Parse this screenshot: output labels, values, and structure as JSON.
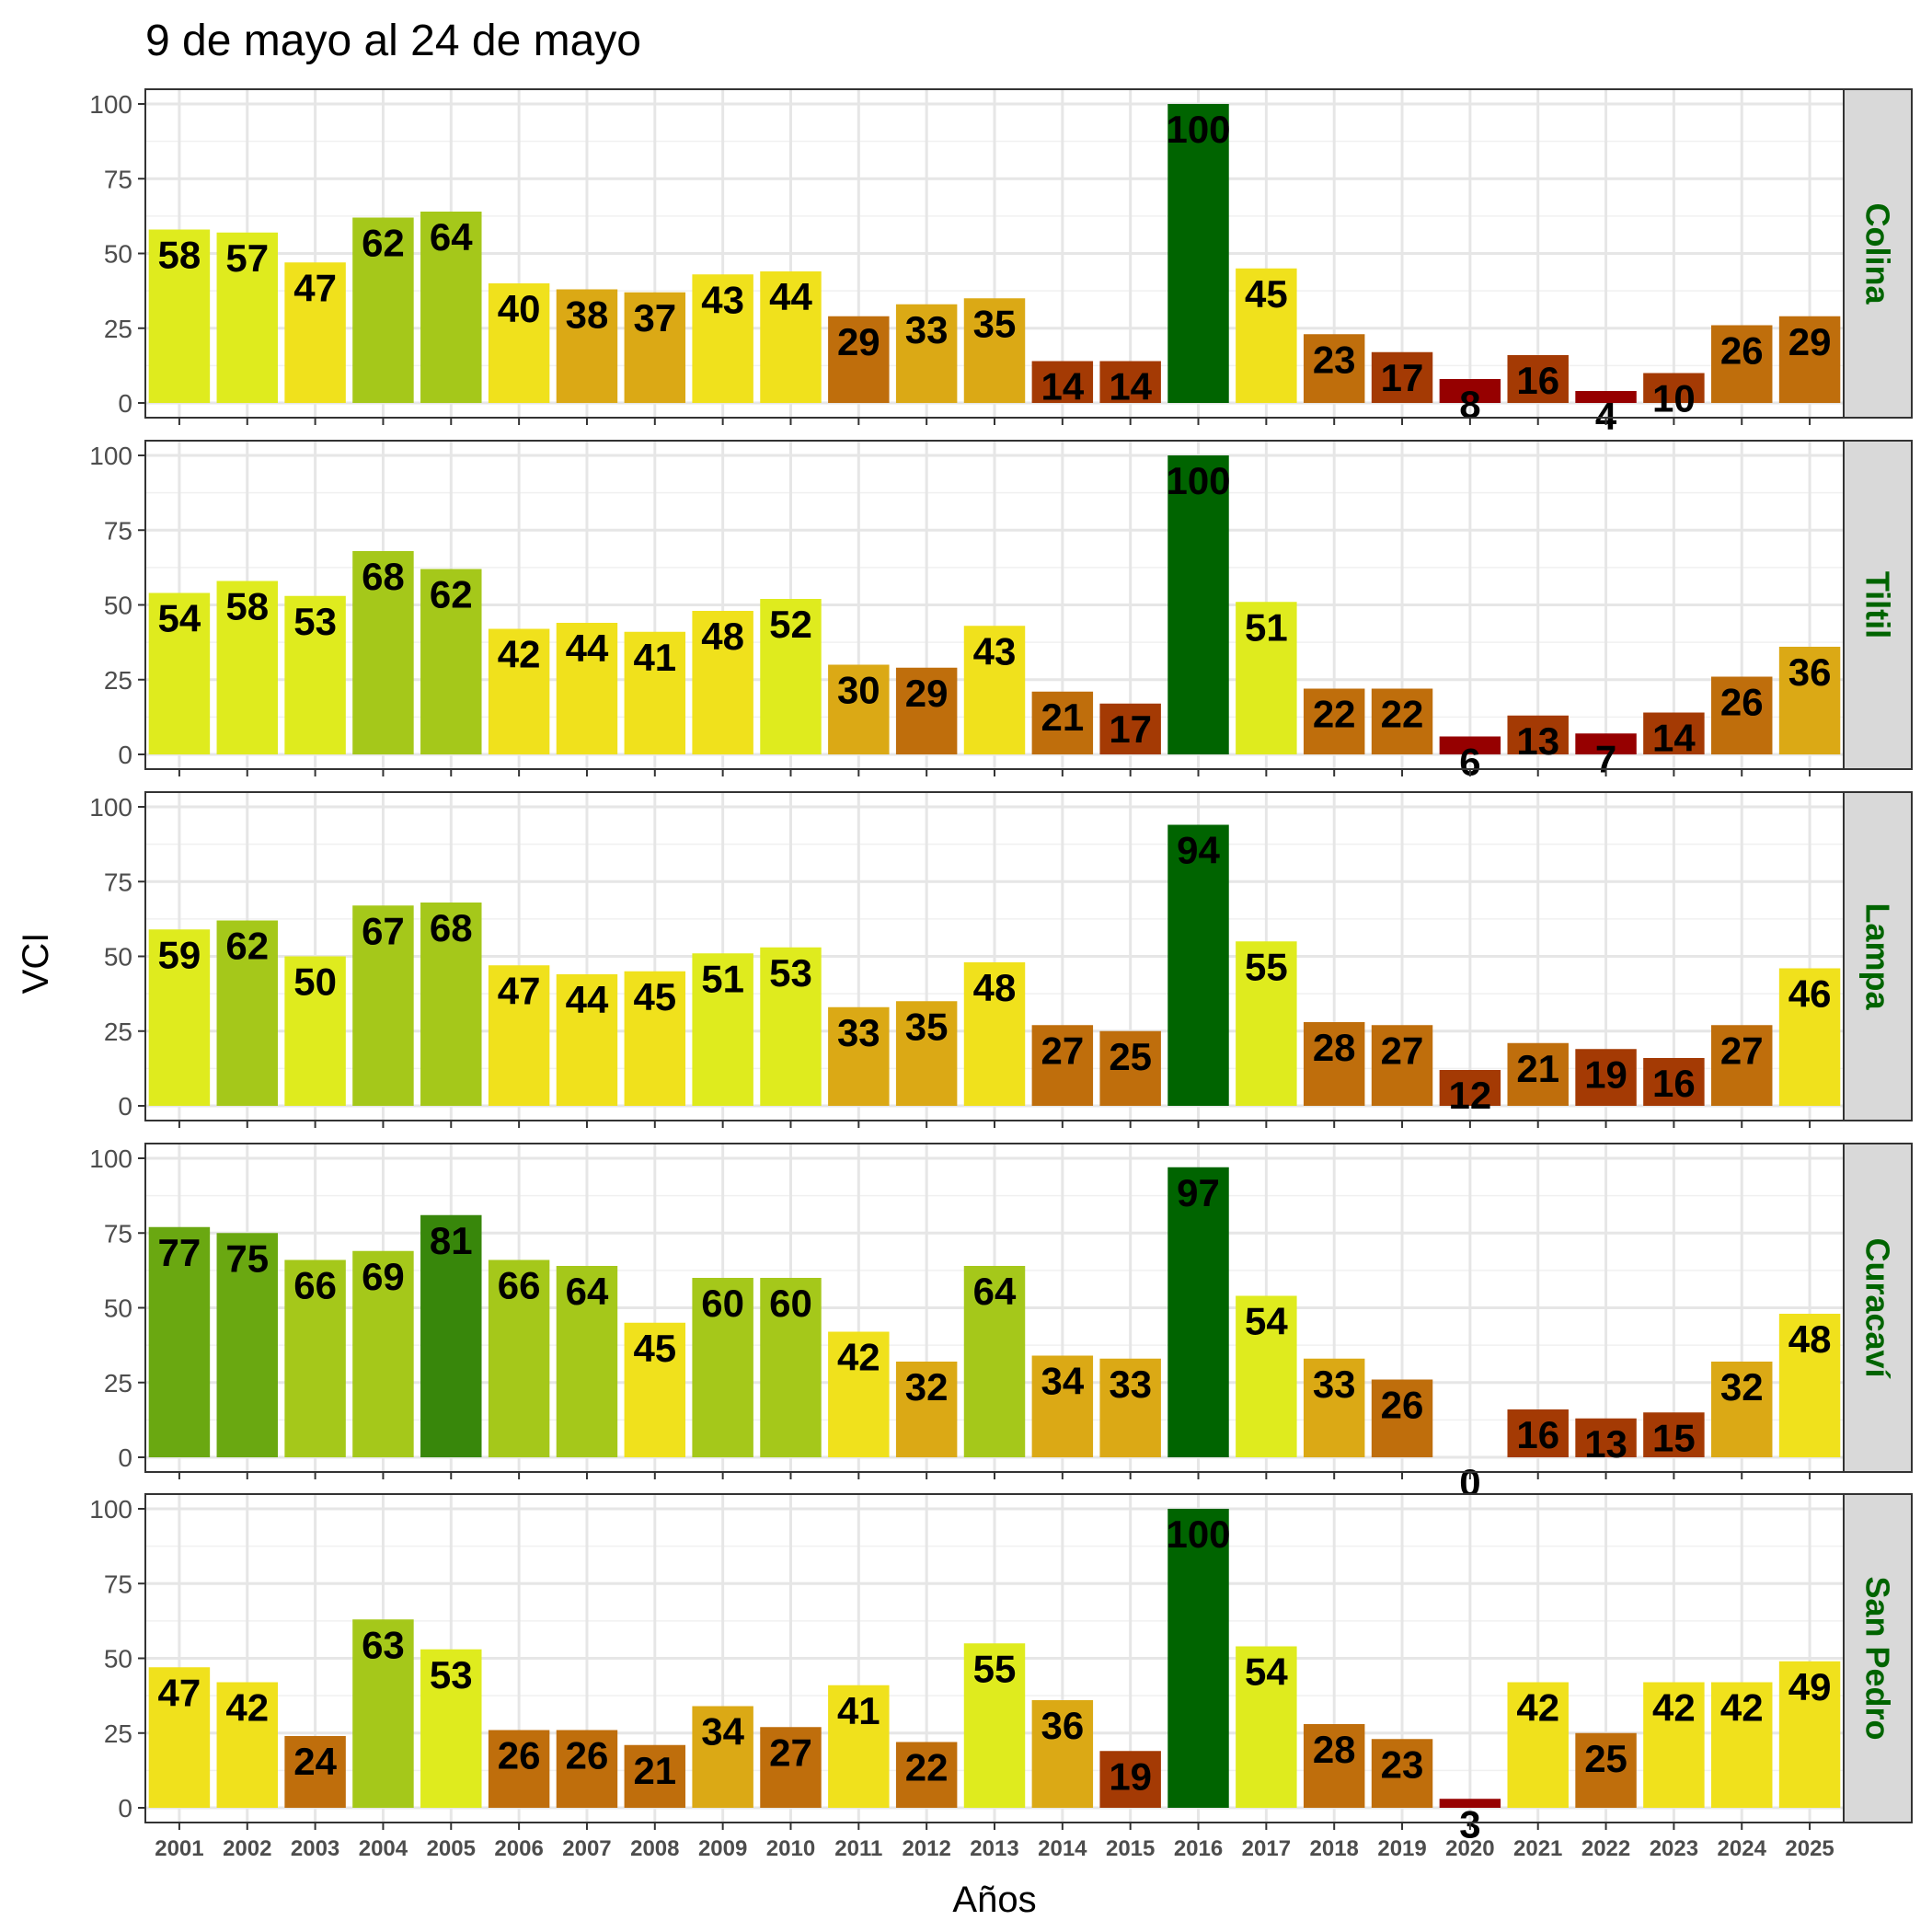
{
  "chart_data": {
    "type": "bar",
    "title": "9 de mayo al 24 de mayo",
    "xlabel": "Años",
    "ylabel": "VCI",
    "ylim": [
      0,
      100
    ],
    "yticks": [
      "0",
      "25",
      "50",
      "75",
      "100"
    ],
    "grid": true,
    "strip_label_color": "#006400",
    "categories": [
      "2001",
      "2002",
      "2003",
      "2004",
      "2005",
      "2006",
      "2007",
      "2008",
      "2009",
      "2010",
      "2011",
      "2012",
      "2013",
      "2014",
      "2015",
      "2016",
      "2017",
      "2018",
      "2019",
      "2020",
      "2021",
      "2022",
      "2023",
      "2024",
      "2025"
    ],
    "series": [
      {
        "name": "Colina",
        "values": [
          58,
          57,
          47,
          62,
          64,
          40,
          38,
          37,
          43,
          44,
          29,
          33,
          35,
          14,
          14,
          100,
          45,
          23,
          17,
          8,
          16,
          4,
          10,
          26,
          29
        ]
      },
      {
        "name": "Tiltil",
        "values": [
          54,
          58,
          53,
          68,
          62,
          42,
          44,
          41,
          48,
          52,
          30,
          29,
          43,
          21,
          17,
          100,
          51,
          22,
          22,
          6,
          13,
          7,
          14,
          26,
          36
        ]
      },
      {
        "name": "Lampa",
        "values": [
          59,
          62,
          50,
          67,
          68,
          47,
          44,
          45,
          51,
          53,
          33,
          35,
          48,
          27,
          25,
          94,
          55,
          28,
          27,
          12,
          21,
          19,
          16,
          27,
          46
        ]
      },
      {
        "name": "Curacaví",
        "values": [
          77,
          75,
          66,
          69,
          81,
          66,
          64,
          45,
          60,
          60,
          42,
          32,
          64,
          34,
          33,
          97,
          54,
          33,
          26,
          0,
          16,
          13,
          15,
          32,
          48
        ]
      },
      {
        "name": "San Pedro",
        "values": [
          47,
          42,
          24,
          63,
          53,
          26,
          26,
          21,
          34,
          27,
          41,
          22,
          55,
          36,
          19,
          100,
          54,
          28,
          23,
          3,
          42,
          25,
          42,
          42,
          49
        ]
      }
    ],
    "color_scale": [
      {
        "min": 90,
        "color": "#006400"
      },
      {
        "min": 80,
        "color": "#38870b"
      },
      {
        "min": 70,
        "color": "#6aa811"
      },
      {
        "min": 60,
        "color": "#a5c81a"
      },
      {
        "min": 50,
        "color": "#dfeb1e"
      },
      {
        "min": 40,
        "color": "#f0e11c"
      },
      {
        "min": 30,
        "color": "#dba915"
      },
      {
        "min": 20,
        "color": "#bf6e0c"
      },
      {
        "min": 10,
        "color": "#a43a04"
      },
      {
        "min": 0,
        "color": "#960000"
      }
    ]
  }
}
